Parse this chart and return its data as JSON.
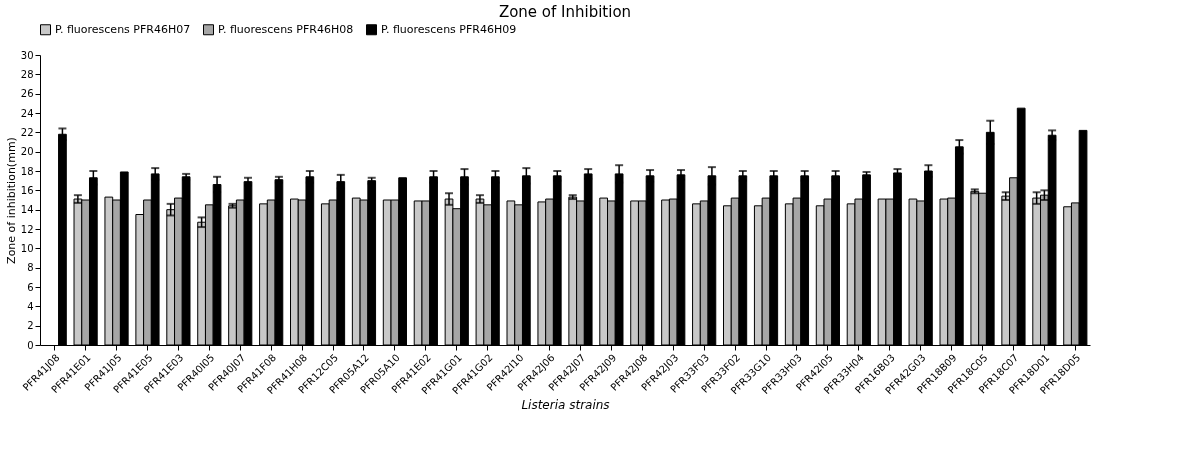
{
  "chart_data": {
    "type": "bar",
    "title": "Zone of Inhibition",
    "xlabel": "Listeria strains",
    "ylabel": "Zone of inhibition(mm)",
    "categories": [
      "PFR41J08",
      "PFR41E01",
      "PFR41J05",
      "PFR41E05",
      "PFR41E03",
      "PFR40I05",
      "PFR40J07",
      "PFR41F08",
      "PFR41H08",
      "PFR12C05",
      "PFR05A12",
      "PFR05A10",
      "PFR41E02",
      "PFR41G01",
      "PFR41G02",
      "PFR42I10",
      "PFR42J06",
      "PFR42J07",
      "PFR42J09",
      "PFR42J08",
      "PFR42J03",
      "PFR33F03",
      "PFR33F02",
      "PFR33G10",
      "PFR33H03",
      "PFR42I05",
      "PFR33H04",
      "PFR16B03",
      "PFR42G03",
      "PFR18B09",
      "PFR18C05",
      "PFR18C07",
      "PFR18D01",
      "PFR18D05"
    ],
    "series": [
      {
        "name": "P. fluorescens PFR46H07",
        "color": "#c8c8c8",
        "values": [
          null,
          15.1,
          15.3,
          13.5,
          14.0,
          12.7,
          14.4,
          14.6,
          15.1,
          14.6,
          15.2,
          15.0,
          14.9,
          15.1,
          15.1,
          14.9,
          14.8,
          15.3,
          15.2,
          14.9,
          15.0,
          14.6,
          14.4,
          14.4,
          14.6,
          14.4,
          14.6,
          15.1,
          15.1,
          15.1,
          15.9,
          15.4,
          15.2,
          14.3
        ],
        "errors": [
          null,
          0.4,
          null,
          null,
          0.6,
          0.5,
          0.2,
          null,
          null,
          null,
          null,
          null,
          null,
          0.6,
          0.4,
          null,
          null,
          0.2,
          null,
          null,
          null,
          null,
          null,
          null,
          null,
          null,
          null,
          null,
          null,
          null,
          0.2,
          0.4,
          0.6,
          null
        ]
      },
      {
        "name": "P. fluorescens PFR46H08",
        "color": "#a6a6a6",
        "values": [
          null,
          15.0,
          15.0,
          15.0,
          15.2,
          14.5,
          15.0,
          15.0,
          15.0,
          15.0,
          15.0,
          15.0,
          14.9,
          14.1,
          14.5,
          14.5,
          15.1,
          14.9,
          14.9,
          14.9,
          15.1,
          14.9,
          15.2,
          15.2,
          15.2,
          15.1,
          15.1,
          15.1,
          14.9,
          15.2,
          15.7,
          17.3,
          15.5,
          14.7
        ],
        "errors": [
          null,
          null,
          null,
          null,
          null,
          null,
          null,
          null,
          null,
          null,
          null,
          null,
          null,
          null,
          null,
          null,
          null,
          null,
          null,
          null,
          null,
          null,
          null,
          null,
          null,
          null,
          null,
          null,
          null,
          null,
          null,
          null,
          0.5,
          null
        ]
      },
      {
        "name": "P. fluorescens PFR46H09",
        "color": "#000000",
        "values": [
          21.8,
          17.3,
          17.9,
          17.7,
          17.4,
          16.6,
          16.9,
          17.1,
          17.4,
          16.9,
          17.0,
          17.3,
          17.4,
          17.4,
          17.4,
          17.5,
          17.5,
          17.7,
          17.7,
          17.5,
          17.6,
          17.5,
          17.5,
          17.5,
          17.5,
          17.5,
          17.6,
          17.8,
          18.0,
          20.5,
          22.0,
          24.5,
          21.7,
          22.2
        ],
        "errors": [
          0.6,
          0.7,
          null,
          0.6,
          0.3,
          0.8,
          0.4,
          0.3,
          0.6,
          0.7,
          0.3,
          null,
          0.6,
          0.8,
          0.6,
          0.8,
          0.5,
          0.5,
          0.9,
          0.6,
          0.5,
          0.9,
          0.5,
          0.5,
          0.5,
          0.5,
          0.3,
          0.4,
          0.6,
          0.7,
          1.2,
          null,
          0.5,
          null
        ]
      }
    ],
    "ylim": [
      0,
      30
    ],
    "yticks": [
      0,
      2,
      4,
      6,
      8,
      10,
      12,
      14,
      16,
      18,
      20,
      22,
      24,
      26,
      28,
      30
    ],
    "grid": false,
    "legend": "top"
  }
}
